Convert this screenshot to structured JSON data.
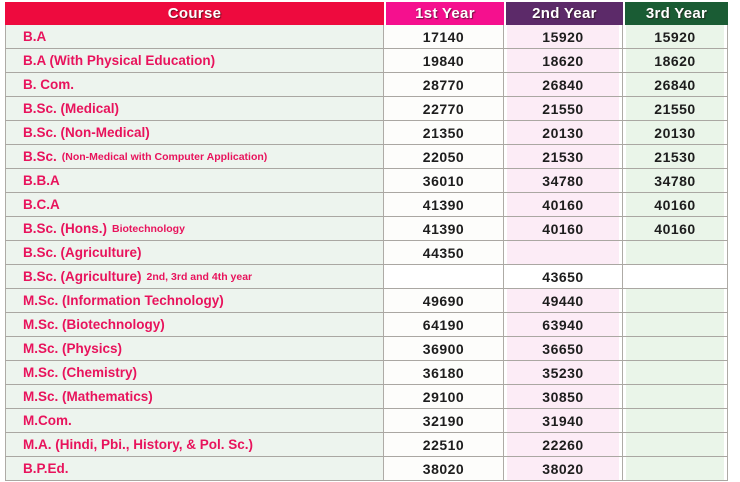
{
  "table": {
    "headers": {
      "course": "Course",
      "year1": "1st Year",
      "year2": "2nd Year",
      "year3": "3rd Year"
    },
    "colors": {
      "course_header_bg": "#ee0a3e",
      "year1_header_bg": "#f5108e",
      "year2_header_bg": "#5c2a69",
      "year3_header_bg": "#1a5c34",
      "header_text": "#ffffff",
      "course_text": "#e8135c",
      "value_text": "#1d1d1d",
      "course_cell_bg": "#edf4ee",
      "year2_cell_bg": "#fcecf6",
      "year3_cell_bg": "#eaf5e9"
    },
    "rows": [
      {
        "course": "B.A",
        "sub": "",
        "y1": "17140",
        "y2": "15920",
        "y3": "15920"
      },
      {
        "course": "B.A (With Physical Education)",
        "sub": "",
        "y1": "19840",
        "y2": "18620",
        "y3": "18620"
      },
      {
        "course": "B. Com.",
        "sub": "",
        "y1": "28770",
        "y2": "26840",
        "y3": "26840"
      },
      {
        "course": "B.Sc. (Medical)",
        "sub": "",
        "y1": "22770",
        "y2": "21550",
        "y3": "21550"
      },
      {
        "course": "B.Sc. (Non-Medical)",
        "sub": "",
        "y1": "21350",
        "y2": "20130",
        "y3": "20130"
      },
      {
        "course": "B.Sc.",
        "sub": "(Non-Medical with Computer Application)",
        "y1": "22050",
        "y2": "21530",
        "y3": "21530"
      },
      {
        "course": "B.B.A",
        "sub": "",
        "y1": "36010",
        "y2": "34780",
        "y3": "34780"
      },
      {
        "course": "B.C.A",
        "sub": "",
        "y1": "41390",
        "y2": "40160",
        "y3": "40160"
      },
      {
        "course": "B.Sc. (Hons.)",
        "sub": "Biotechnology",
        "y1": "41390",
        "y2": "40160",
        "y3": "40160"
      },
      {
        "course": "B.Sc. (Agriculture)",
        "sub": "",
        "y1": "44350",
        "y2": "",
        "y3": ""
      },
      {
        "course": "B.Sc. (Agriculture)",
        "sub": "2nd, 3rd and 4th year",
        "y1": "",
        "y2": "43650",
        "y3": ""
      },
      {
        "course": "M.Sc. (Information Technology)",
        "sub": "",
        "y1": "49690",
        "y2": "49440",
        "y3": ""
      },
      {
        "course": "M.Sc. (Biotechnology)",
        "sub": "",
        "y1": "64190",
        "y2": "63940",
        "y3": ""
      },
      {
        "course": "M.Sc. (Physics)",
        "sub": "",
        "y1": "36900",
        "y2": "36650",
        "y3": ""
      },
      {
        "course": "M.Sc. (Chemistry)",
        "sub": "",
        "y1": "36180",
        "y2": "35230",
        "y3": ""
      },
      {
        "course": "M.Sc. (Mathematics)",
        "sub": "",
        "y1": "29100",
        "y2": "30850",
        "y3": ""
      },
      {
        "course": "M.Com.",
        "sub": "",
        "y1": "32190",
        "y2": "31940",
        "y3": ""
      },
      {
        "course": "M.A. (Hindi, Pbi., History, & Pol. Sc.)",
        "sub": "",
        "y1": "22510",
        "y2": "22260",
        "y3": ""
      },
      {
        "course": "B.P.Ed.",
        "sub": "",
        "y1": "38020",
        "y2": "38020",
        "y3": ""
      }
    ]
  }
}
